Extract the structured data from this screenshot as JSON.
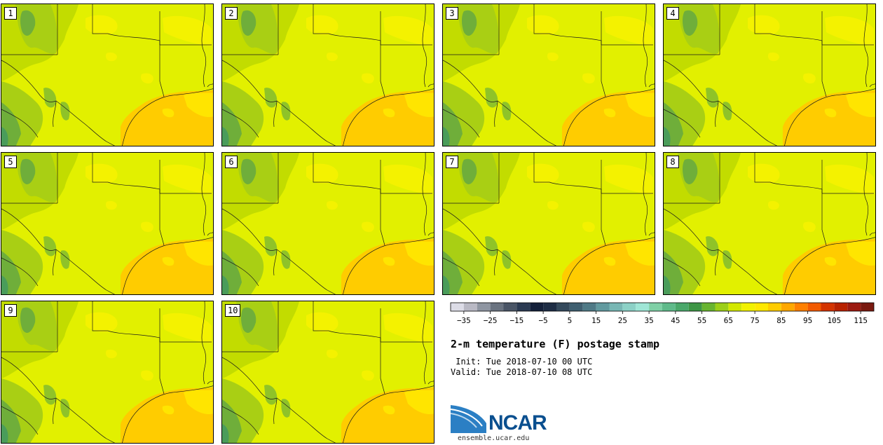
{
  "panels": [
    {
      "label": "1"
    },
    {
      "label": "2"
    },
    {
      "label": "3"
    },
    {
      "label": "4"
    },
    {
      "label": "5"
    },
    {
      "label": "6"
    },
    {
      "label": "7"
    },
    {
      "label": "8"
    },
    {
      "label": "9"
    },
    {
      "label": "10"
    }
  ],
  "colorbar": {
    "colors": [
      "#dcdce6",
      "#b9b9c4",
      "#8f96a2",
      "#6a7380",
      "#4a5566",
      "#2b3a52",
      "#14203a",
      "#1e2d45",
      "#34495c",
      "#3f5f70",
      "#4f7a86",
      "#629a9f",
      "#78b7b4",
      "#8cd1c6",
      "#9fe6d6",
      "#7fd0a6",
      "#5fba8a",
      "#4aa86a",
      "#3e9645",
      "#68b430",
      "#9ccf18",
      "#d3e800",
      "#f2f200",
      "#ffe800",
      "#ffcc00",
      "#ffa800",
      "#ff8000",
      "#f25a00",
      "#d43400",
      "#b82200",
      "#9c1a10",
      "#7a1a10"
    ],
    "tick_labels": [
      "−35",
      "−25",
      "−15",
      "−5",
      "5",
      "15",
      "25",
      "35",
      "45",
      "55",
      "65",
      "75",
      "85",
      "95",
      "105",
      "115"
    ]
  },
  "title": "2-m temperature (F) postage stamp",
  "init": "Init: Tue 2018-07-10 00 UTC",
  "valid": "Valid: Tue 2018-07-10 08 UTC",
  "logo": {
    "text": "NCAR",
    "url": "ensemble.ucar.edu"
  }
}
